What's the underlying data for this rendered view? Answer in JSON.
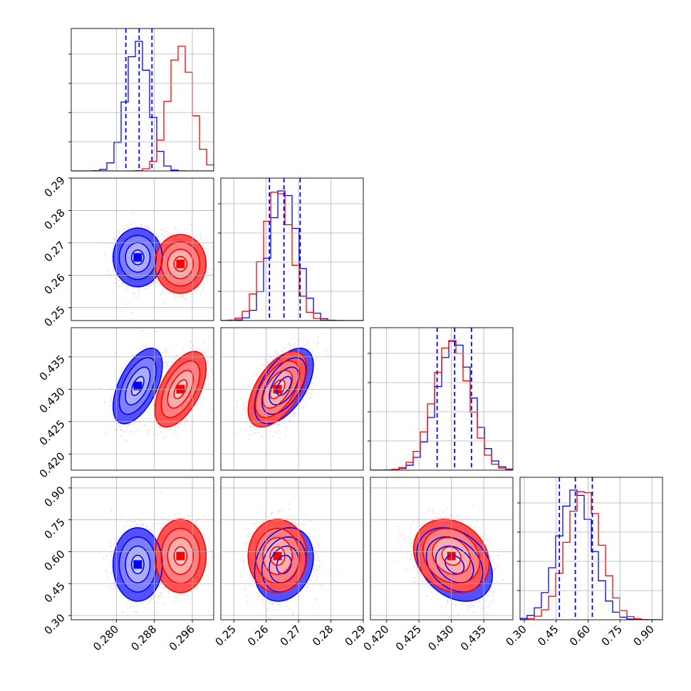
{
  "chart_data": {
    "type": "corner",
    "grid": true,
    "parameters": [
      {
        "range": [
          0.2705,
          0.3005
        ],
        "ticks": [
          0.28,
          0.288,
          0.296
        ],
        "tick_labels": [
          "0.280",
          "0.288",
          "0.296"
        ]
      },
      {
        "range": [
          0.246,
          0.29
        ],
        "ticks": [
          0.25,
          0.26,
          0.27,
          0.28,
          0.29
        ],
        "tick_labels": [
          "0.25",
          "0.26",
          "0.27",
          "0.28",
          "0.29"
        ]
      },
      {
        "range": [
          0.4175,
          0.4395
        ],
        "ticks": [
          0.42,
          0.425,
          0.43,
          0.435
        ],
        "tick_labels": [
          "0.420",
          "0.425",
          "0.430",
          "0.435"
        ]
      },
      {
        "range": [
          0.28,
          0.95
        ],
        "ticks": [
          0.3,
          0.45,
          0.6,
          0.75,
          0.9
        ],
        "tick_labels": [
          "0.30",
          "0.45",
          "0.60",
          "0.75",
          "0.90"
        ]
      }
    ],
    "series": [
      {
        "color": "#0000ff",
        "mean": [
          0.2845,
          0.2655,
          0.4305,
          0.54
        ],
        "sd": [
          0.0024,
          0.0042,
          0.0027,
          0.08
        ],
        "quantiles": [
          [
            0.282,
            0.2848,
            0.2875
          ],
          [
            0.261,
            0.2655,
            0.2705
          ],
          [
            0.4278,
            0.4305,
            0.4331
          ],
          [
            0.465,
            0.54,
            0.62
          ]
        ],
        "corr": [
          [
            1,
            0,
            0.55,
            0
          ],
          [
            0,
            1,
            0.55,
            0.2
          ],
          [
            0.55,
            0.55,
            1,
            -0.3
          ],
          [
            0,
            0.2,
            -0.3,
            1
          ]
        ]
      },
      {
        "color": "#ff0000",
        "mean": [
          0.2935,
          0.2635,
          0.43,
          0.58
        ],
        "sd": [
          0.0025,
          0.0042,
          0.0027,
          0.08
        ],
        "quantiles": [],
        "corr": [
          [
            1,
            0,
            0.55,
            0
          ],
          [
            0,
            1,
            0.55,
            0
          ],
          [
            0.55,
            0.55,
            1,
            -0.2
          ],
          [
            0,
            0,
            -0.2,
            1
          ]
        ]
      }
    ],
    "quantile_color": "#0000ff"
  }
}
